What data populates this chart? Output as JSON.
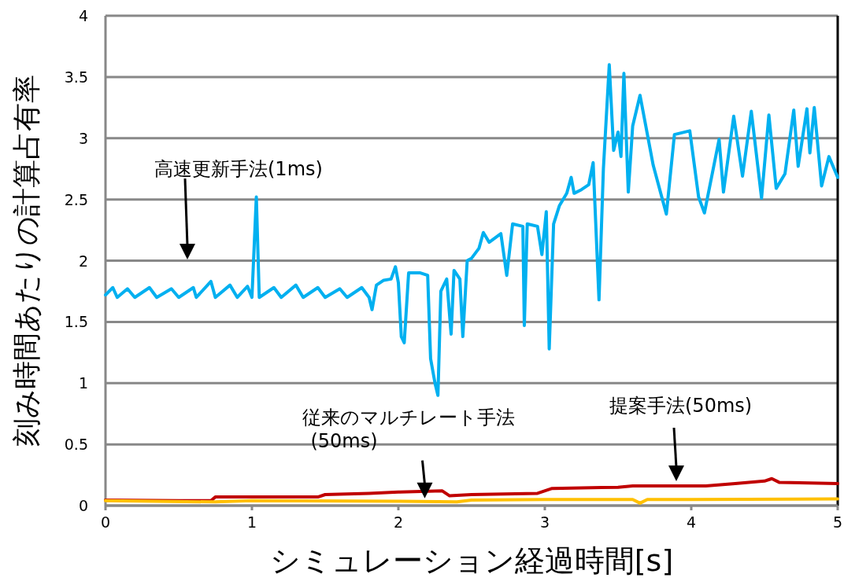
{
  "chart_data": {
    "type": "line",
    "xlabel": "シミュレーション経過時間[s]",
    "ylabel": "刻み時間あたりの計算占有率",
    "xlim": [
      0,
      5
    ],
    "xticks": [
      0,
      1,
      2,
      3,
      4,
      5
    ],
    "ylim": [
      0,
      4
    ],
    "yticks": [
      0,
      0.5,
      1,
      1.5,
      2,
      2.5,
      3,
      3.5,
      4
    ],
    "grid": "y",
    "line_style": "solid",
    "marker": "none",
    "series": [
      {
        "color": "#00b0f0",
        "x": [
          0,
          0.05,
          0.08,
          0.15,
          0.2,
          0.3,
          0.35,
          0.45,
          0.5,
          0.6,
          0.62,
          0.72,
          0.75,
          0.85,
          0.9,
          0.97,
          1.0,
          1.03,
          1.05,
          1.15,
          1.2,
          1.3,
          1.35,
          1.45,
          1.5,
          1.6,
          1.65,
          1.75,
          1.8,
          1.82,
          1.85,
          1.9,
          1.95,
          1.98,
          2.0,
          2.02,
          2.04,
          2.07,
          2.15,
          2.2,
          2.22,
          2.25,
          2.27,
          2.29,
          2.33,
          2.36,
          2.38,
          2.42,
          2.44,
          2.47,
          2.5,
          2.55,
          2.58,
          2.62,
          2.7,
          2.74,
          2.78,
          2.85,
          2.86,
          2.88,
          2.95,
          2.98,
          3.01,
          3.03,
          3.06,
          3.1,
          3.15,
          3.18,
          3.2,
          3.25,
          3.3,
          3.33,
          3.37,
          3.4,
          3.44,
          3.47,
          3.5,
          3.52,
          3.54,
          3.57,
          3.6,
          3.65,
          3.74,
          3.83,
          3.885,
          3.99,
          4.05,
          4.09,
          4.19,
          4.22,
          4.29,
          4.35,
          4.41,
          4.48,
          4.53,
          4.58,
          4.64,
          4.7,
          4.73,
          4.79,
          4.81,
          4.84,
          4.89,
          4.94,
          5.0
        ],
        "values": [
          1.72,
          1.78,
          1.7,
          1.77,
          1.7,
          1.78,
          1.7,
          1.77,
          1.7,
          1.78,
          1.7,
          1.83,
          1.7,
          1.8,
          1.7,
          1.79,
          1.7,
          2.52,
          1.7,
          1.78,
          1.7,
          1.8,
          1.7,
          1.78,
          1.7,
          1.77,
          1.7,
          1.78,
          1.7,
          1.6,
          1.8,
          1.84,
          1.85,
          1.95,
          1.82,
          1.38,
          1.33,
          1.9,
          1.9,
          1.88,
          1.2,
          1.0,
          0.9,
          1.75,
          1.85,
          1.4,
          1.92,
          1.85,
          1.38,
          2.0,
          2.02,
          2.1,
          2.23,
          2.15,
          2.22,
          1.88,
          2.3,
          2.28,
          1.47,
          2.3,
          2.28,
          2.05,
          2.4,
          1.28,
          2.3,
          2.45,
          2.55,
          2.68,
          2.55,
          2.58,
          2.62,
          2.8,
          1.68,
          2.75,
          3.6,
          2.9,
          3.05,
          2.85,
          3.53,
          2.56,
          3.1,
          3.35,
          2.78,
          2.38,
          3.03,
          3.06,
          2.52,
          2.39,
          2.99,
          2.56,
          3.18,
          2.69,
          3.22,
          2.51,
          3.19,
          2.59,
          2.71,
          3.23,
          2.77,
          3.24,
          2.88,
          3.25,
          2.61,
          2.85,
          2.68
        ]
      },
      {
        "color": "#c00000",
        "x": [
          0,
          0.5,
          0.72,
          0.75,
          1.0,
          1.45,
          1.5,
          1.8,
          2.0,
          2.3,
          2.35,
          2.5,
          2.95,
          3.05,
          3.5,
          3.6,
          4.1,
          4.3,
          4.5,
          4.55,
          4.6,
          5.0
        ],
        "values": [
          0.045,
          0.04,
          0.04,
          0.07,
          0.07,
          0.07,
          0.09,
          0.1,
          0.11,
          0.12,
          0.08,
          0.09,
          0.1,
          0.14,
          0.15,
          0.16,
          0.16,
          0.18,
          0.2,
          0.22,
          0.19,
          0.18
        ]
      },
      {
        "color": "#ffc000",
        "x": [
          0,
          0.75,
          1.0,
          2.0,
          2.4,
          2.5,
          3.0,
          3.6,
          3.65,
          3.7,
          4.0,
          5.0
        ],
        "values": [
          0.04,
          0.03,
          0.04,
          0.035,
          0.03,
          0.045,
          0.05,
          0.05,
          0.02,
          0.05,
          0.05,
          0.055
        ]
      }
    ],
    "annotations": [
      "高速更新手法(1ms)",
      {
        "text": "従来のマルチレート手法\n(50ms)",
        "x": 2.18,
        "y": 0.06
      },
      "提案手法(50ms)"
    ]
  }
}
